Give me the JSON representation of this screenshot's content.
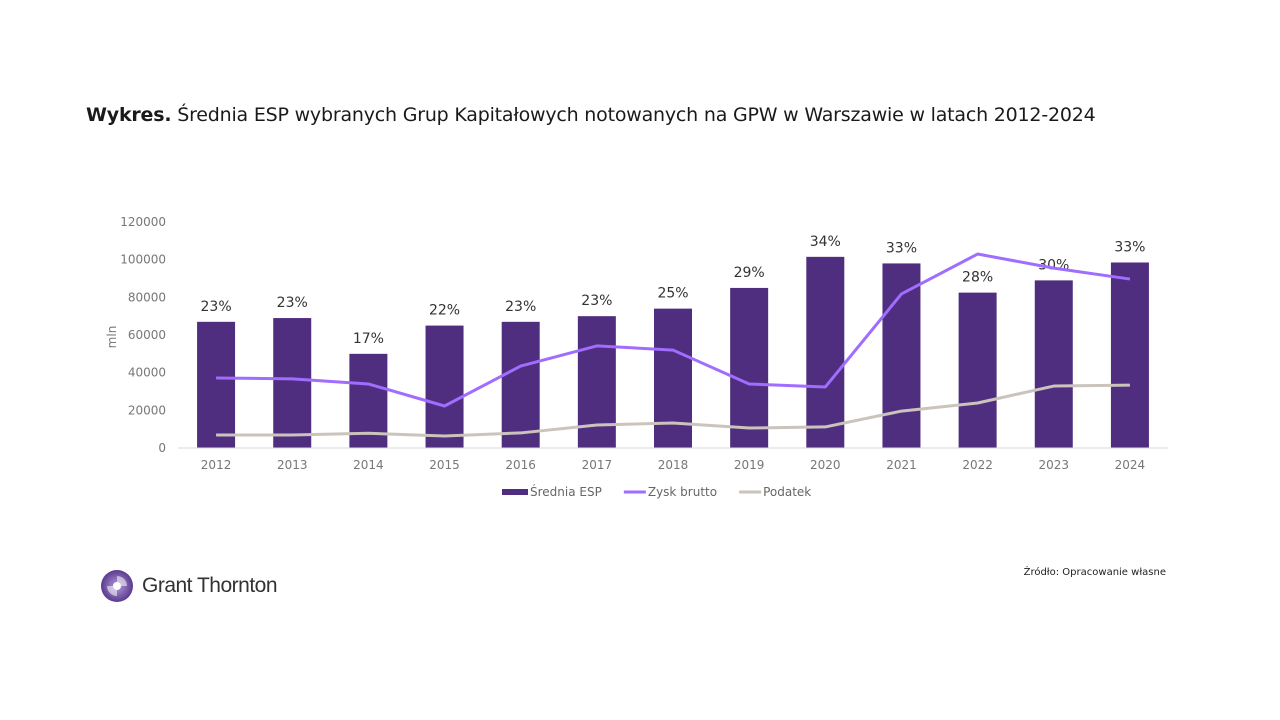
{
  "title": {
    "prefix": "Wykres.",
    "text": " Średnia ESP wybranych Grup Kapitałowych notowanych na GPW w Warszawie w latach 2012-2024"
  },
  "source": "Źródło: Opracowanie własne",
  "logo": {
    "text": "Grant Thornton"
  },
  "chart_data": {
    "type": "bar",
    "categories": [
      "2012",
      "2013",
      "2014",
      "2015",
      "2016",
      "2017",
      "2018",
      "2019",
      "2020",
      "2021",
      "2022",
      "2023",
      "2024"
    ],
    "ylabel": "mln",
    "ylim": [
      0,
      120000
    ],
    "yticks": [
      0,
      20000,
      40000,
      60000,
      80000,
      100000,
      120000
    ],
    "grid": false,
    "legend": "bottom",
    "series": [
      {
        "name": "Średnia ESP",
        "type": "bar",
        "color": "#4f2d7f",
        "values": [
          67000,
          69000,
          50000,
          65000,
          67000,
          70000,
          74000,
          85000,
          101500,
          98000,
          82500,
          89000,
          98500
        ],
        "labels": [
          "23%",
          "23%",
          "17%",
          "22%",
          "23%",
          "23%",
          "25%",
          "29%",
          "34%",
          "33%",
          "28%",
          "30%",
          "33%"
        ]
      },
      {
        "name": "Zysk brutto",
        "type": "line",
        "color": "#a06dff",
        "values": [
          37200,
          36700,
          34000,
          22300,
          43500,
          54200,
          52000,
          34000,
          32400,
          81800,
          103000,
          95500,
          89700
        ]
      },
      {
        "name": "Podatek",
        "type": "line",
        "color": "#cbc4bc",
        "values": [
          6900,
          6900,
          7800,
          6400,
          8000,
          12200,
          13300,
          10600,
          11200,
          19600,
          23900,
          32900,
          33400
        ]
      }
    ]
  }
}
